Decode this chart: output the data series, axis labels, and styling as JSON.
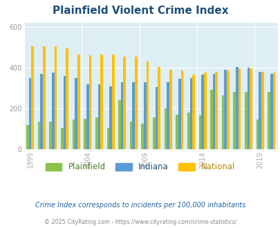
{
  "title": "Plainfield Violent Crime Index",
  "years": [
    1999,
    2000,
    2001,
    2002,
    2003,
    2004,
    2005,
    2006,
    2007,
    2008,
    2009,
    2010,
    2011,
    2012,
    2013,
    2014,
    2015,
    2016,
    2017,
    2018,
    2019,
    2020
  ],
  "plainfield": [
    120,
    135,
    135,
    105,
    145,
    148,
    155,
    105,
    240,
    135,
    125,
    155,
    200,
    170,
    180,
    165,
    290,
    265,
    280,
    280,
    145,
    280
  ],
  "indiana": [
    348,
    370,
    375,
    360,
    350,
    320,
    320,
    310,
    330,
    330,
    330,
    305,
    330,
    345,
    350,
    365,
    370,
    390,
    405,
    400,
    380,
    370
  ],
  "national": [
    505,
    505,
    505,
    495,
    465,
    460,
    465,
    465,
    455,
    455,
    430,
    405,
    390,
    385,
    365,
    375,
    380,
    385,
    395,
    395,
    380,
    375
  ],
  "colors": {
    "plainfield": "#8bc34a",
    "indiana": "#5b9bd5",
    "national": "#ffc000"
  },
  "bg_color": "#ddeef4",
  "ylabel_ticks": [
    0,
    200,
    400,
    600
  ],
  "xtick_years": [
    1999,
    2004,
    2009,
    2014,
    2019
  ],
  "footnote1": "Crime Index corresponds to incidents per 100,000 inhabitants",
  "footnote2": "© 2025 CityRating.com - https://www.cityrating.com/crime-statistics/",
  "title_color": "#1f4e79",
  "legend_colors": {
    "plainfield": "#4a7c23",
    "indiana": "#1f4e79",
    "national": "#b8860b"
  },
  "footnote1_color": "#2060a0",
  "footnote2_color": "#888888"
}
